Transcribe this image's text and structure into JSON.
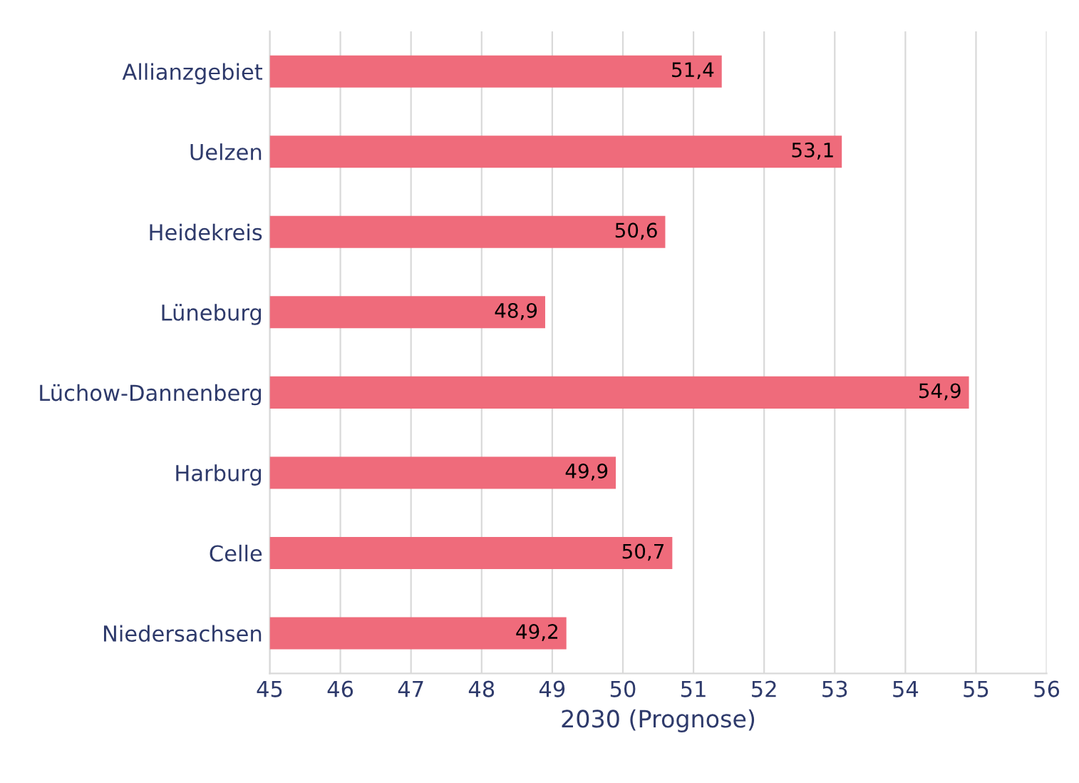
{
  "chart_data": {
    "type": "bar",
    "orientation": "horizontal",
    "xlabel": "2030 (Prognose)",
    "categories": [
      "Allianzgebiet",
      "Uelzen",
      "Heidekreis",
      "Lüneburg",
      "Lüchow-Dannenberg",
      "Harburg",
      "Celle",
      "Niedersachsen"
    ],
    "values": [
      51.4,
      53.1,
      50.6,
      48.9,
      54.9,
      49.9,
      50.7,
      49.2
    ],
    "value_labels": [
      "51,4",
      "53,1",
      "50,6",
      "48,9",
      "54,9",
      "49,9",
      "50,7",
      "49,2"
    ],
    "color": "#ef6b7b",
    "xlim": [
      45,
      56
    ],
    "xticks": [
      45,
      46,
      47,
      48,
      49,
      50,
      51,
      52,
      53,
      54,
      55,
      56
    ],
    "grid": "x",
    "legend": false
  }
}
